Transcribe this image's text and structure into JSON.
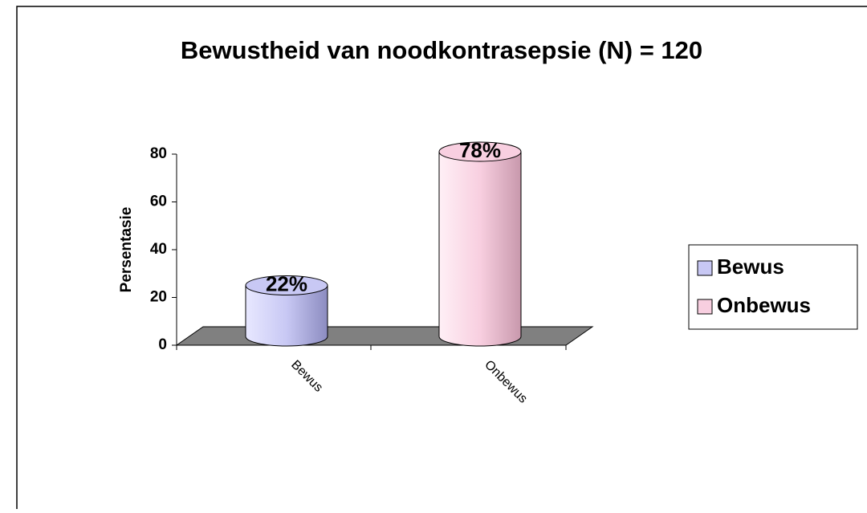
{
  "chart_data": {
    "type": "cylinder-bar",
    "title": "Bewustheid van noodkontrasepsie (N) = 120",
    "y_label": "Persentasie",
    "categories": [
      "Bewus",
      "Onbewus"
    ],
    "values": [
      22,
      78
    ],
    "value_labels": [
      "22%",
      "78%"
    ],
    "colors": [
      "#c8c8f4",
      "#f8cfe0"
    ],
    "ylim": [
      0,
      80
    ],
    "yticks": [
      0,
      20,
      40,
      60,
      80
    ],
    "legend": "right"
  }
}
